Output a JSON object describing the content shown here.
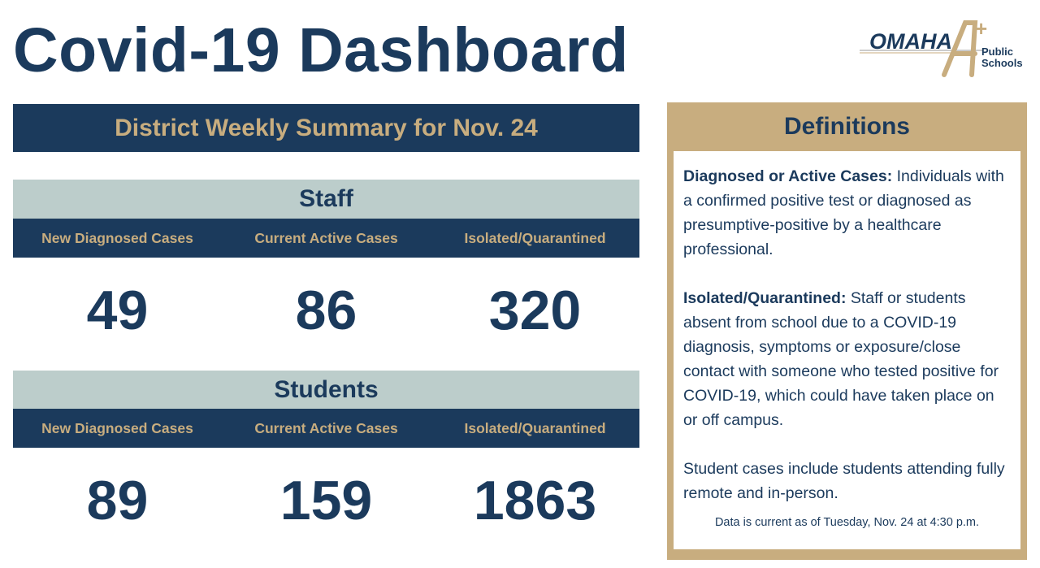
{
  "header": {
    "title": "Covid-19 Dashboard",
    "logo": {
      "name": "OMAHA",
      "mark": "+",
      "sub_line1": "Public",
      "sub_line2": "Schools"
    }
  },
  "summary": {
    "title": "District Weekly Summary for Nov. 24"
  },
  "staff": {
    "title": "Staff",
    "columns": [
      "New Diagnosed Cases",
      "Current Active Cases",
      "Isolated/Quarantined"
    ],
    "values": [
      "49",
      "86",
      "320"
    ]
  },
  "students": {
    "title": "Students",
    "columns": [
      "New Diagnosed Cases",
      "Current Active Cases",
      "Isolated/Quarantined"
    ],
    "values": [
      "89",
      "159",
      "1863"
    ]
  },
  "definitions": {
    "title": "Definitions",
    "items": [
      {
        "term": "Diagnosed or Active Cases:",
        "text": " Individuals with a confirmed positive test or diagnosed as presumptive-positive by a healthcare professional."
      },
      {
        "term": "Isolated/Quarantined:",
        "text": " Staff or students absent from school due to a COVID-19 diagnosis, symptoms or exposure/close contact with someone who tested positive for COVID-19, which could have taken place on or off campus."
      }
    ],
    "note": "Student cases include students attending fully remote and in-person.",
    "footer": "Data is current as of Tuesday, Nov. 24 at 4:30 p.m."
  },
  "colors": {
    "navy": "#1b3a5c",
    "gold": "#c8ad7f",
    "sage": "#bccdcb"
  }
}
